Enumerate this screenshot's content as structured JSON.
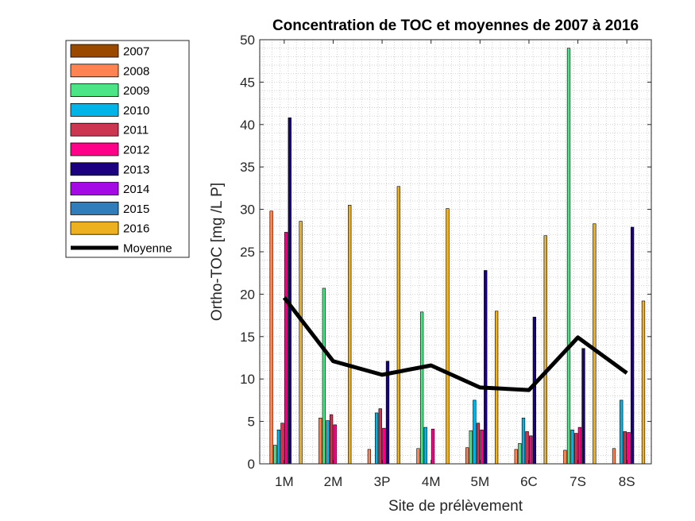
{
  "chart_data": {
    "type": "bar",
    "title": "Concentration de TOC et moyennes de 2007 à 2016",
    "xlabel": "Site de prélèvement",
    "ylabel": "Ortho-TOC [mg /L P]",
    "ylim": [
      0,
      50
    ],
    "yticks": [
      0,
      5,
      10,
      15,
      20,
      25,
      30,
      35,
      40,
      45,
      50
    ],
    "grid": "minor, dotted",
    "legend_position": "outside-left",
    "categories": [
      "1M",
      "2M",
      "3P",
      "4M",
      "5M",
      "6C",
      "7S",
      "8S"
    ],
    "series": [
      {
        "name": "2007",
        "color": "#9A4A00",
        "values": [
          null,
          null,
          null,
          null,
          null,
          null,
          null,
          null
        ]
      },
      {
        "name": "2008",
        "color": "#FF8452",
        "values": [
          29.8,
          5.4,
          1.7,
          1.8,
          1.9,
          1.7,
          1.6,
          1.8
        ]
      },
      {
        "name": "2009",
        "color": "#4BE585",
        "values": [
          2.2,
          20.7,
          null,
          17.9,
          3.9,
          2.4,
          49.0,
          null
        ]
      },
      {
        "name": "2010",
        "color": "#00B4E8",
        "values": [
          4.0,
          5.1,
          6.0,
          4.3,
          7.5,
          5.4,
          4.0,
          7.5
        ]
      },
      {
        "name": "2011",
        "color": "#CC3651",
        "values": [
          4.8,
          5.8,
          6.5,
          null,
          4.8,
          3.8,
          3.6,
          3.8
        ]
      },
      {
        "name": "2012",
        "color": "#FF0088",
        "values": [
          27.3,
          4.6,
          4.2,
          4.1,
          4.0,
          3.3,
          4.3,
          3.7
        ]
      },
      {
        "name": "2013",
        "color": "#1B0080",
        "values": [
          40.8,
          null,
          12.1,
          null,
          22.8,
          17.3,
          13.6,
          27.9
        ]
      },
      {
        "name": "2014",
        "color": "#A40BE4",
        "values": [
          null,
          null,
          null,
          null,
          null,
          null,
          null,
          null
        ]
      },
      {
        "name": "2015",
        "color": "#2F7DBA",
        "values": [
          null,
          null,
          null,
          null,
          null,
          null,
          null,
          null
        ]
      },
      {
        "name": "2016",
        "color": "#EDB120",
        "values": [
          28.6,
          30.5,
          32.7,
          30.1,
          18.0,
          26.9,
          28.3,
          19.2
        ]
      },
      {
        "name": "Moyenne",
        "color": "#000000",
        "type": "line",
        "values": [
          19.6,
          12.1,
          10.5,
          11.6,
          9.0,
          8.7,
          14.9,
          10.7
        ]
      }
    ]
  }
}
